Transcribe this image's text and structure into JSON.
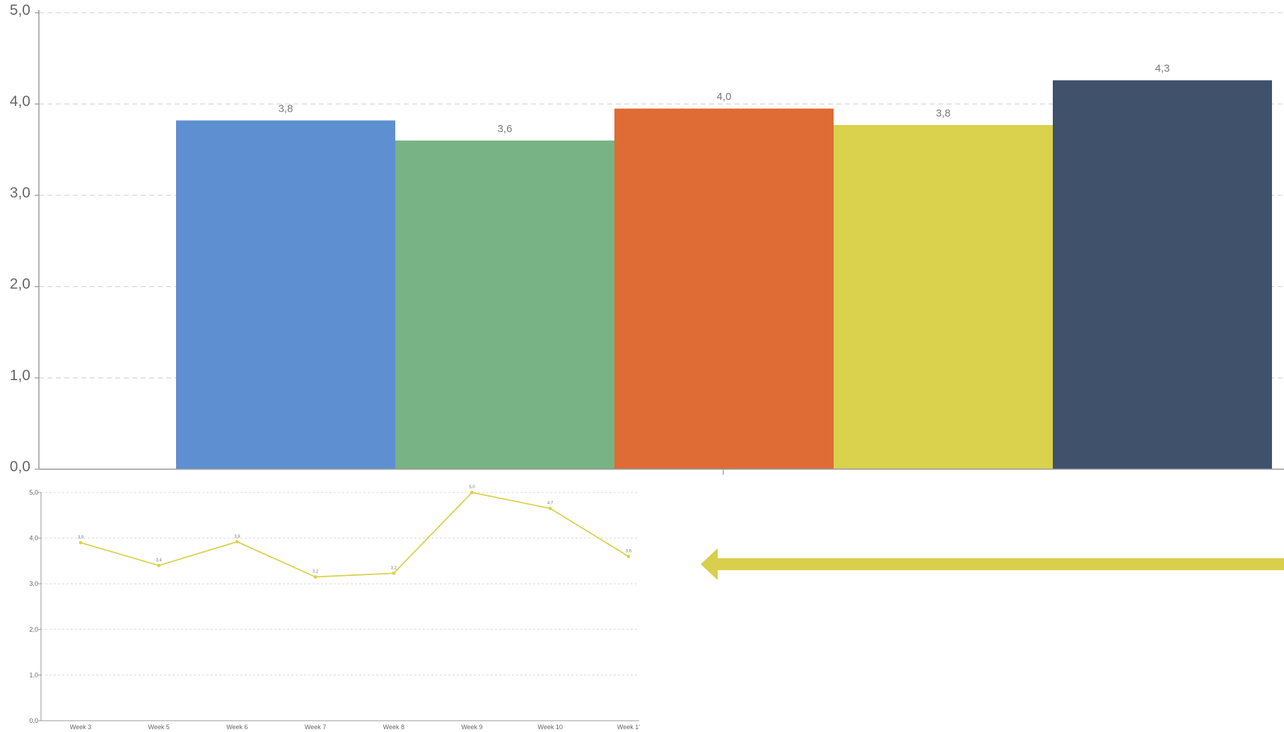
{
  "colors": {
    "grid": "#d9d9d9",
    "axis": "#9a9a9a",
    "text": "#666666",
    "label": "#7a7a7a",
    "arrow": "#d9cf4c"
  },
  "chart_data": [
    {
      "type": "bar",
      "ylim": [
        0,
        5
      ],
      "yticks": [
        "0,0",
        "1,0",
        "2,0",
        "3,0",
        "4,0",
        "5,0"
      ],
      "grid": true,
      "series": [
        {
          "value": 3.82,
          "label": "3,8",
          "color": "#5e8fd1"
        },
        {
          "value": 3.6,
          "label": "3,6",
          "color": "#77b384"
        },
        {
          "value": 3.95,
          "label": "4,0",
          "color": "#df6b35"
        },
        {
          "value": 3.77,
          "label": "3,8",
          "color": "#dad14d"
        },
        {
          "value": 4.26,
          "label": "4,3",
          "color": "#3f516b"
        }
      ]
    },
    {
      "type": "line",
      "ylim": [
        0,
        5
      ],
      "yticks": [
        "0,0",
        "1,0",
        "2,0",
        "3,0",
        "4,0",
        "5,0"
      ],
      "grid": true,
      "color": "#dad14d",
      "categories": [
        "Week 3",
        "Week 5",
        "Week 6",
        "Week 7",
        "Week 8",
        "Week 9",
        "Week 10",
        "Week 1'"
      ],
      "values": [
        3.9,
        3.4,
        3.92,
        3.15,
        3.23,
        5.0,
        4.65,
        3.6
      ],
      "labels": [
        "3,9",
        "3,4",
        "3,9",
        "3,2",
        "3,2",
        "5,0",
        "4,7",
        "3,6"
      ]
    }
  ]
}
